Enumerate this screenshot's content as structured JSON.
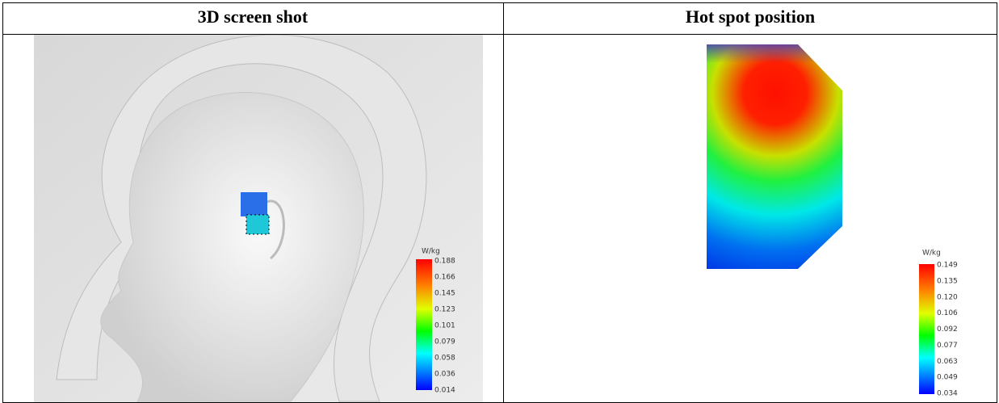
{
  "table": {
    "header": [
      "3D screen shot",
      "Hot spot position"
    ]
  },
  "left_legend": {
    "unit": "W/kg",
    "labels": [
      "0.188",
      "0.166",
      "0.145",
      "0.123",
      "0.101",
      "0.079",
      "0.058",
      "0.036",
      "0.014"
    ]
  },
  "right_legend": {
    "unit": "W/kg",
    "labels": [
      "0.149",
      "0.135",
      "0.120",
      "0.106",
      "0.092",
      "0.077",
      "0.063",
      "0.049",
      "0.034"
    ]
  }
}
